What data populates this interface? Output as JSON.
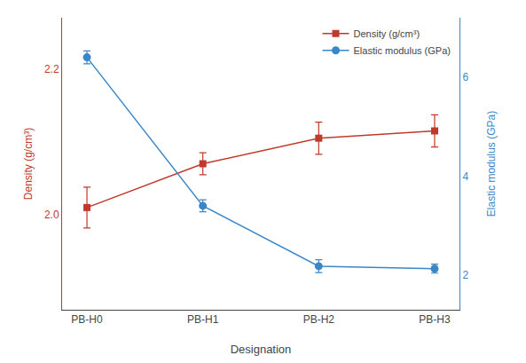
{
  "chart_data": {
    "type": "line",
    "xlabel": "Designation",
    "ylabel": "Density (g/cm³)",
    "y2label": "Elastic modulus (GPa)",
    "categories": [
      "PB-H0",
      "PB-H1",
      "PB-H2",
      "PB-H3"
    ],
    "series": [
      {
        "name": "Density (g/cm³)",
        "color": "#C0392B",
        "marker": "square",
        "line_style": "solid",
        "values": [
          2.01,
          2.07,
          2.105,
          2.115
        ],
        "errors": [
          0.028,
          0.015,
          0.022,
          0.022
        ]
      },
      {
        "name": "Elastic modulus (GPa)",
        "color": "#3A87C8",
        "marker": "circle",
        "line_style": "solid",
        "axis": "y2",
        "values": [
          6.4,
          3.4,
          2.18,
          2.13
        ],
        "errors": [
          0.13,
          0.12,
          0.13,
          0.09
        ]
      }
    ],
    "ylim": [
      1.87,
      2.27
    ],
    "yticks": [
      {
        "value": 2.0,
        "label": "2.0"
      },
      2.2
    ],
    "y2lim": [
      1.3,
      7.2
    ],
    "y2ticks": [
      2,
      4,
      6
    ],
    "grid": false,
    "legend": "upper right"
  }
}
